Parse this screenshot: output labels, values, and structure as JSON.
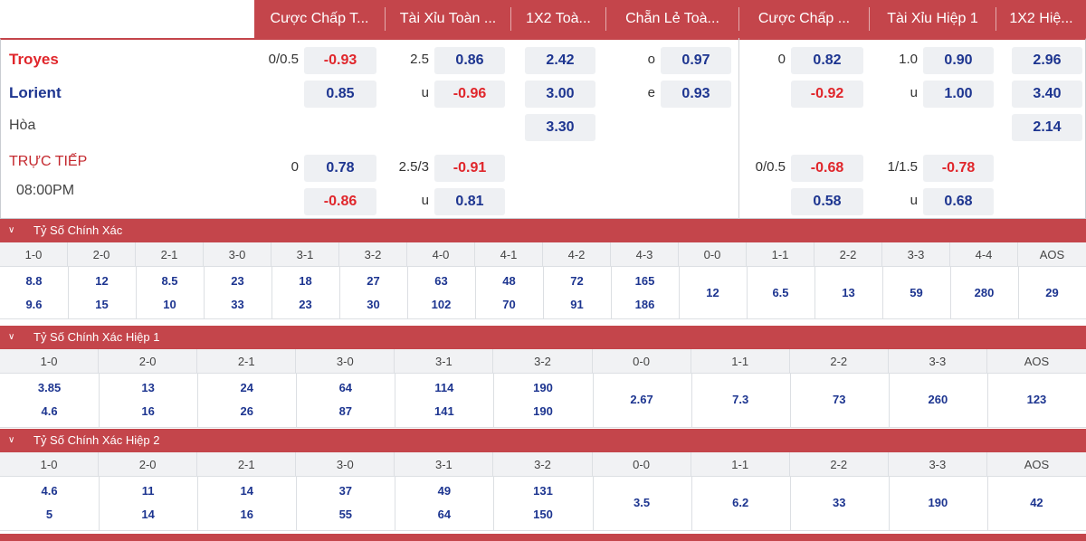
{
  "header": {
    "columns": [
      "Cược Chấp T...",
      "Tài Xỉu Toàn ...",
      "1X2 Toà...",
      "Chẵn Lẻ Toà...",
      "Cược Chấp ...",
      "Tài Xỉu Hiệp 1",
      "1X2 Hiệ..."
    ]
  },
  "teams": {
    "home": "Troyes",
    "away": "Lorient",
    "draw": "Hòa",
    "home_color": "#e0262b",
    "away_color": "#1d3590"
  },
  "match": {
    "status": "TRỰC TIẾP",
    "time": "08:00PM"
  },
  "odds": {
    "main": {
      "hdp": {
        "line": "0/0.5",
        "home": "-0.93",
        "away": "0.85"
      },
      "ou": {
        "line": "2.5",
        "over": "0.86",
        "under_label": "u",
        "under": "-0.96"
      },
      "x12": {
        "home": "2.42",
        "away": "3.00",
        "draw": "3.30"
      },
      "oe": {
        "odd_label": "o",
        "odd": "0.97",
        "even_label": "e",
        "even": "0.93"
      },
      "hdp1": {
        "line": "0",
        "home": "0.82",
        "away": "-0.92"
      },
      "ou1": {
        "line": "1.0",
        "over": "0.90",
        "under_label": "u",
        "under": "1.00"
      },
      "x12h1": {
        "home": "2.96",
        "away": "3.40",
        "draw": "2.14"
      }
    },
    "alt": {
      "hdp": {
        "line": "0",
        "home": "0.78",
        "away": "-0.86"
      },
      "ou": {
        "line": "2.5/3",
        "over": "-0.91",
        "under_label": "u",
        "under": "0.81"
      },
      "hdp1": {
        "line": "0/0.5",
        "home": "-0.68",
        "away": "0.58"
      },
      "ou1": {
        "line": "1/1.5",
        "over": "-0.78",
        "under_label": "u",
        "under": "0.68"
      }
    }
  },
  "correct_score": {
    "title": "Tỷ Số Chính Xác",
    "scores": [
      "1-0",
      "2-0",
      "2-1",
      "3-0",
      "3-1",
      "3-2",
      "4-0",
      "4-1",
      "4-2",
      "4-3",
      "0-0",
      "1-1",
      "2-2",
      "3-3",
      "4-4",
      "AOS"
    ],
    "top": [
      "8.8",
      "12",
      "8.5",
      "23",
      "18",
      "27",
      "63",
      "48",
      "72",
      "165",
      "12",
      "6.5",
      "13",
      "59",
      "280",
      "29"
    ],
    "bottom": [
      "9.6",
      "15",
      "10",
      "33",
      "23",
      "30",
      "102",
      "70",
      "91",
      "186",
      "",
      "",
      "",
      "",
      "",
      ""
    ]
  },
  "correct_score_h1": {
    "title": "Tỷ Số Chính Xác Hiệp 1",
    "scores": [
      "1-0",
      "2-0",
      "2-1",
      "3-0",
      "3-1",
      "3-2",
      "0-0",
      "1-1",
      "2-2",
      "3-3",
      "AOS"
    ],
    "top": [
      "3.85",
      "13",
      "24",
      "64",
      "114",
      "190",
      "2.67",
      "7.3",
      "73",
      "260",
      "123"
    ],
    "bottom": [
      "4.6",
      "16",
      "26",
      "87",
      "141",
      "190",
      "",
      "",
      "",
      "",
      ""
    ]
  },
  "correct_score_h2": {
    "title": "Tỷ Số Chính Xác Hiệp 2",
    "scores": [
      "1-0",
      "2-0",
      "2-1",
      "3-0",
      "3-1",
      "3-2",
      "0-0",
      "1-1",
      "2-2",
      "3-3",
      "AOS"
    ],
    "top": [
      "4.6",
      "11",
      "14",
      "37",
      "49",
      "131",
      "3.5",
      "6.2",
      "33",
      "190",
      "42"
    ],
    "bottom": [
      "5",
      "14",
      "16",
      "55",
      "64",
      "150",
      "",
      "",
      "",
      "",
      ""
    ]
  }
}
